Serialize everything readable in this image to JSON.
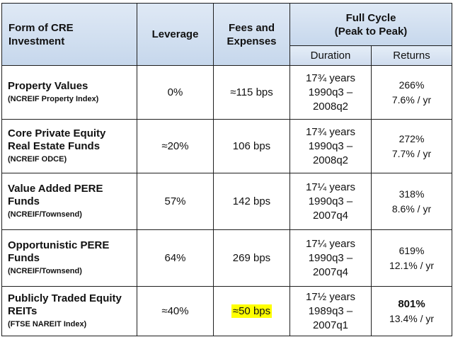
{
  "header": {
    "form": [
      "Form of CRE",
      "Investment"
    ],
    "leverage": "Leverage",
    "fees": [
      "Fees and",
      "Expenses"
    ],
    "full_cycle": [
      "Full Cycle",
      "(Peak to Peak)"
    ],
    "duration": "Duration",
    "returns": "Returns"
  },
  "rows": [
    {
      "title": [
        "Property Values"
      ],
      "source": "(NCREIF Property Index)",
      "leverage": "0%",
      "fees": "≈115 bps",
      "duration": [
        "17¾ years",
        "1990q3 –",
        "2008q2"
      ],
      "returns": [
        "266%",
        "7.6% / yr"
      ]
    },
    {
      "title": [
        "Core Private Equity",
        "Real Estate Funds"
      ],
      "source": "(NCREIF ODCE)",
      "leverage": "≈20%",
      "fees": "106 bps",
      "duration": [
        "17¾ years",
        "1990q3 –",
        "2008q2"
      ],
      "returns": [
        "272%",
        "7.7% / yr"
      ]
    },
    {
      "title": [
        "Value Added PERE",
        "Funds"
      ],
      "source": "(NCREIF/Townsend)",
      "leverage": "57%",
      "fees": "142 bps",
      "duration": [
        "17¼ years",
        "1990q3 –",
        "2007q4"
      ],
      "returns": [
        "318%",
        "8.6% / yr"
      ]
    },
    {
      "title": [
        "Opportunistic PERE",
        "Funds"
      ],
      "source": "(NCREIF/Townsend)",
      "leverage": "64%",
      "fees": "269 bps",
      "duration": [
        "17¼ years",
        "1990q3 –",
        "2007q4"
      ],
      "returns": [
        "619%",
        "12.1% / yr"
      ]
    },
    {
      "title": [
        "Publicly Traded Equity",
        "REITs"
      ],
      "source": "(FTSE NAREIT Index)",
      "leverage": "≈40%",
      "fees": "≈50 bps",
      "duration": [
        "17½ years",
        "1989q3 –",
        "2007q1"
      ],
      "returns": [
        "801%",
        "13.4% / yr"
      ]
    }
  ],
  "colors": {
    "header_top": "#dfe9f5",
    "header_bottom": "#c6d7ec",
    "border": "#1f1f1f",
    "highlight": "#ffff00"
  }
}
